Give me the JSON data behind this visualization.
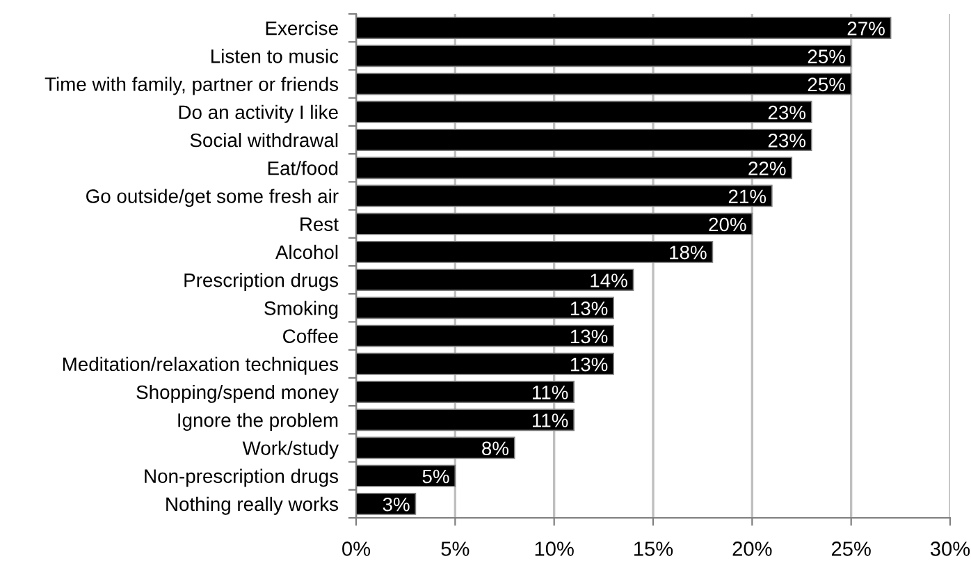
{
  "chart_data": {
    "type": "bar",
    "orientation": "horizontal",
    "categories": [
      "Exercise",
      "Listen to music",
      "Time with family, partner or friends",
      "Do an activity I like",
      "Social withdrawal",
      "Eat/food",
      "Go outside/get some fresh air",
      "Rest",
      "Alcohol",
      "Prescription drugs",
      "Smoking",
      "Coffee",
      "Meditation/relaxation techniques",
      "Shopping/spend money",
      "Ignore the problem",
      "Work/study",
      "Non-prescription drugs",
      "Nothing really works"
    ],
    "values": [
      27,
      25,
      25,
      23,
      23,
      22,
      21,
      20,
      18,
      14,
      13,
      13,
      13,
      11,
      11,
      8,
      5,
      3
    ],
    "value_labels": [
      "27%",
      "25%",
      "25%",
      "23%",
      "23%",
      "22%",
      "21%",
      "20%",
      "18%",
      "14%",
      "13%",
      "13%",
      "13%",
      "11%",
      "11%",
      "8%",
      "5%",
      "3%"
    ],
    "color": "#000000",
    "xlim": [
      0,
      30
    ],
    "xticks": [
      {
        "value": 0,
        "label": "0%"
      },
      {
        "value": 5,
        "label": "5%"
      },
      {
        "value": 10,
        "label": "10%"
      },
      {
        "value": 15,
        "label": "15%"
      },
      {
        "value": 20,
        "label": "20%"
      },
      {
        "value": 25,
        "label": "25%"
      },
      {
        "value": 30,
        "label": "30%"
      }
    ],
    "grid": "x",
    "legend": false
  }
}
